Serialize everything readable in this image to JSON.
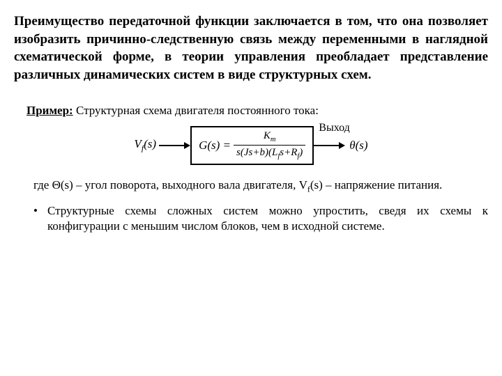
{
  "mainText": "Преимущество передаточной функции заключается в том, что она позволяет изобразить причинно-следственную связь между переменными в наглядной схематической форме, в теории управления преобладает представление различных динамических систем в виде структурных схем.",
  "example": {
    "label": "Пример:",
    "title": "Структурная схема двигателя постоянного тока:"
  },
  "diagram": {
    "input": "V",
    "inputSub": "f",
    "inputArg": "(s)",
    "blockLhs": "G(s) = ",
    "numerator": "K",
    "numeratorSub": "m",
    "denominator": "s(Js+b)(L",
    "denominatorSub": "f",
    "denominatorTail": "s+R",
    "denominatorSub2": "f",
    "denominatorEnd": ")",
    "outputTop": "Выход",
    "output": "θ(s)"
  },
  "description": {
    "text1": "где Θ(s) – угол поворота, выходного вала двигателя, V",
    "sub1": "f",
    "text2": "(s) – напряжение питания."
  },
  "bullet": {
    "marker": "•",
    "text": "Структурные схемы сложных систем можно упростить, сведя их схемы к конфигурации с меньшим числом блоков, чем в исходной системе."
  }
}
